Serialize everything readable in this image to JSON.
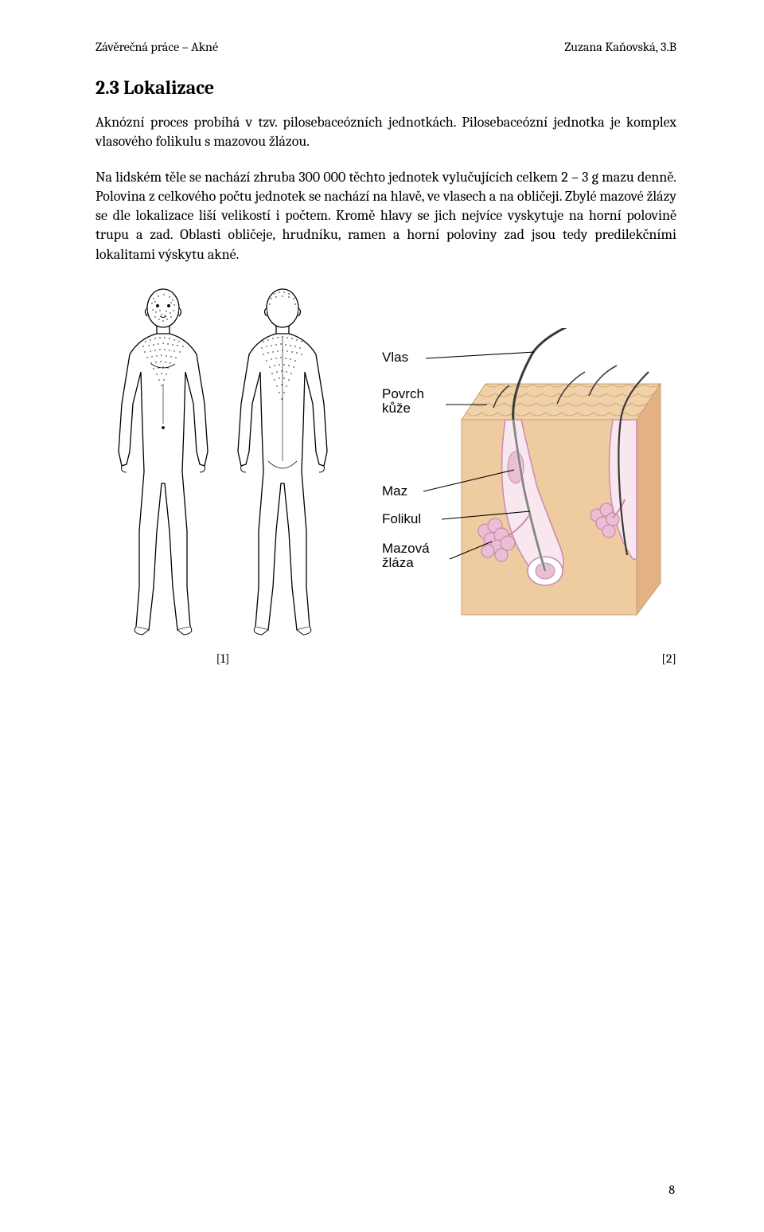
{
  "header": {
    "left": "Závěrečná práce – Akné",
    "right": "Zuzana Kaňovská, 3.B"
  },
  "section": {
    "heading": "2.3 Lokalizace",
    "para1": "Aknózní proces probíhá v tzv. pilosebaceózních jednotkách. Pilosebaceózní jednotka je komplex vlasového folikulu s mazovou žlázou.",
    "para2": "Na lidském těle se nachází zhruba 300 000 těchto jednotek vylučujících celkem 2 – 3 g mazu denně. Polovina z celkového počtu jednotek se nachází na hlavě, ve vlasech a na obličeji. Zbylé mazové žlázy se dle lokalizace liší velikostí i počtem. Kromě hlavy se jich nejvíce vyskytuje na horní polovině trupu a zad. Oblasti obličeje, hrudníku, ramen a horní poloviny zad jsou tedy predilekčními lokalitami výskytu akné."
  },
  "figures": {
    "fig1": {
      "caption": "[1]"
    },
    "fig2": {
      "caption": "[2]",
      "labels": {
        "vlas": "Vlas",
        "povrch": "Povrch kůže",
        "maz": "Maz",
        "folikul": "Folikul",
        "mazova": "Mazová žláza"
      },
      "colors": {
        "skin_light": "#f6d9b8",
        "skin_mid": "#efcba0",
        "skin_side": "#e3b184",
        "skin_top_cells": "#f0d1aa",
        "cell_border": "#c9a06b",
        "follicle_fill": "#f9e7ef",
        "follicle_border": "#c98aac",
        "sebum_fill": "#eabed4",
        "hair_shaft": "#3a3a3a",
        "label_text": "#000000",
        "leader_line": "#000000"
      },
      "label_fontsize": 17
    },
    "body_outline": {
      "stroke": "#000000",
      "fill": "#ffffff",
      "stipple": "#000000"
    }
  },
  "page_number": "8"
}
